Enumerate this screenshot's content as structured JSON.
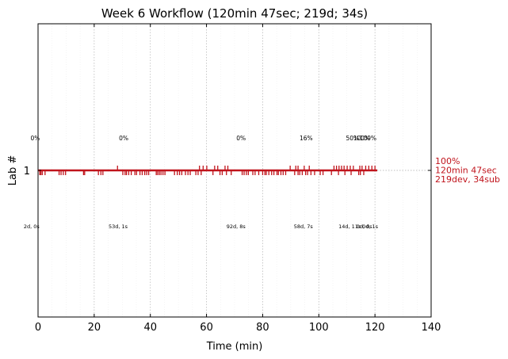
{
  "chart_data": {
    "type": "scatter",
    "title": "Week 6 Workflow (120min 47sec; 219d; 34s)",
    "xlabel": "Time (min)",
    "ylabel": "Lab #",
    "xlim": [
      0,
      140
    ],
    "x_ticks": [
      0,
      20,
      40,
      60,
      80,
      100,
      120,
      140
    ],
    "y_ticks": [
      1
    ],
    "grid": "vertical-dotted",
    "series_color": "#c0141c",
    "timeline": {
      "lab": 1,
      "start": 0,
      "end": 120.8
    },
    "dev_events": [
      0.6,
      1.0,
      1.5,
      2.5,
      7.5,
      8.2,
      9.0,
      9.8,
      16.2,
      16.6,
      21.5,
      22.4,
      23.1,
      30.2,
      31.0,
      31.5,
      32.3,
      33.2,
      34.5,
      35.1,
      36.3,
      37.1,
      38.0,
      38.7,
      39.4,
      42.1,
      42.6,
      43.2,
      43.8,
      44.5,
      45.2,
      48.6,
      49.6,
      50.4,
      51.2,
      52.5,
      53.4,
      54.2,
      56.2,
      57.0,
      58.1,
      62.3,
      64.8,
      65.6,
      67.1,
      68.8,
      72.7,
      73.4,
      74.2,
      74.9,
      76.5,
      77.3,
      78.6,
      80.0,
      80.8,
      81.3,
      82.2,
      83.2,
      84.0,
      85.1,
      85.6,
      86.5,
      87.3,
      88.2,
      91.4,
      92.6,
      93.2,
      94.1,
      95.3,
      96.0,
      97.2,
      98.5,
      100.5,
      101.5,
      104.5,
      107.0,
      109.3,
      111.5,
      114.2,
      114.8,
      116.0
    ],
    "submit_events": [
      28.3,
      57.5,
      58.8,
      60.1,
      62.9,
      64.0,
      66.6,
      67.6,
      89.8,
      91.8,
      92.6,
      94.8,
      96.6,
      105.4,
      106.3,
      107.2,
      108.1,
      109.0,
      110.1,
      111.2,
      112.3,
      114.6,
      115.4,
      116.7,
      117.8,
      118.9,
      120.0
    ],
    "annotations": {
      "percentages": [
        {
          "x": -1.0,
          "text": "0%"
        },
        {
          "x": 30.5,
          "text": "0%"
        },
        {
          "x": 72.3,
          "text": "0%"
        },
        {
          "x": 95.5,
          "text": "16%"
        },
        {
          "x": 112.0,
          "text": "50%"
        },
        {
          "x": 115.3,
          "text": "100%"
        },
        {
          "x": 117.5,
          "text": "100%"
        }
      ],
      "durations": [
        {
          "x": -2.3,
          "text": "2d, 0s"
        },
        {
          "x": 28.5,
          "text": "53d, 1s"
        },
        {
          "x": 70.5,
          "text": "92d, 8s"
        },
        {
          "x": 94.5,
          "text": "58d, 7s"
        },
        {
          "x": 111.0,
          "text": "14d, 11s"
        },
        {
          "x": 116.2,
          "text": "0d, 0s"
        },
        {
          "x": 118.3,
          "text": "0d, 1s"
        }
      ]
    },
    "summary": [
      "100%",
      "120min 47sec",
      "219dev, 34sub"
    ]
  }
}
